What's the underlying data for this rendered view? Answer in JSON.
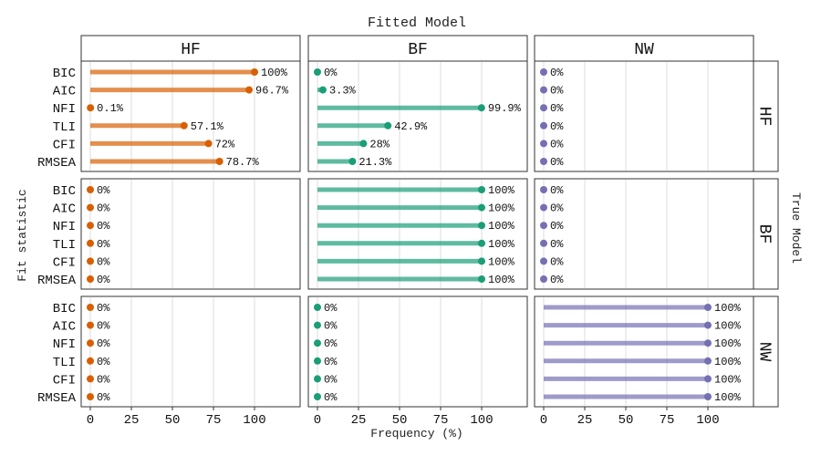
{
  "chart_data": {
    "type": "lollipop-facet",
    "title": "Fitted Model",
    "xlabel": "Frequency (%)",
    "ylabel": "Fit statistic",
    "row_facet_label": "True Model",
    "columns": [
      "HF",
      "BF",
      "NW"
    ],
    "rows": [
      "HF",
      "BF",
      "NW"
    ],
    "categories": [
      "BIC",
      "AIC",
      "NFI",
      "TLI",
      "CFI",
      "RMSEA"
    ],
    "xlim": [
      0,
      100
    ],
    "xticks": [
      0,
      25,
      50,
      75,
      100
    ],
    "colors": {
      "HF": "#d95f02",
      "BF": "#1b9e77",
      "NW": "#7570b3"
    },
    "panels": [
      {
        "true_model": "HF",
        "fitted_model": "HF",
        "values": [
          100,
          96.7,
          0.1,
          57.1,
          72,
          78.7
        ],
        "labels": [
          "100%",
          "96.7%",
          "0.1%",
          "57.1%",
          "72%",
          "78.7%"
        ]
      },
      {
        "true_model": "HF",
        "fitted_model": "BF",
        "values": [
          0,
          3.3,
          99.9,
          42.9,
          28,
          21.3
        ],
        "labels": [
          "0%",
          "3.3%",
          "99.9%",
          "42.9%",
          "28%",
          "21.3%"
        ]
      },
      {
        "true_model": "HF",
        "fitted_model": "NW",
        "values": [
          0,
          0,
          0,
          0,
          0,
          0
        ],
        "labels": [
          "0%",
          "0%",
          "0%",
          "0%",
          "0%",
          "0%"
        ]
      },
      {
        "true_model": "BF",
        "fitted_model": "HF",
        "values": [
          0,
          0,
          0,
          0,
          0,
          0
        ],
        "labels": [
          "0%",
          "0%",
          "0%",
          "0%",
          "0%",
          "0%"
        ]
      },
      {
        "true_model": "BF",
        "fitted_model": "BF",
        "values": [
          100,
          100,
          100,
          100,
          100,
          100
        ],
        "labels": [
          "100%",
          "100%",
          "100%",
          "100%",
          "100%",
          "100%"
        ]
      },
      {
        "true_model": "BF",
        "fitted_model": "NW",
        "values": [
          0,
          0,
          0,
          0,
          0,
          0
        ],
        "labels": [
          "0%",
          "0%",
          "0%",
          "0%",
          "0%",
          "0%"
        ]
      },
      {
        "true_model": "NW",
        "fitted_model": "HF",
        "values": [
          0,
          0,
          0,
          0,
          0,
          0
        ],
        "labels": [
          "0%",
          "0%",
          "0%",
          "0%",
          "0%",
          "0%"
        ]
      },
      {
        "true_model": "NW",
        "fitted_model": "BF",
        "values": [
          0,
          0,
          0,
          0,
          0,
          0
        ],
        "labels": [
          "0%",
          "0%",
          "0%",
          "0%",
          "0%",
          "0%"
        ]
      },
      {
        "true_model": "NW",
        "fitted_model": "NW",
        "values": [
          100,
          100,
          100,
          100,
          100,
          100
        ],
        "labels": [
          "100%",
          "100%",
          "100%",
          "100%",
          "100%",
          "100%"
        ]
      }
    ],
    "grid": true,
    "legend": "none"
  }
}
